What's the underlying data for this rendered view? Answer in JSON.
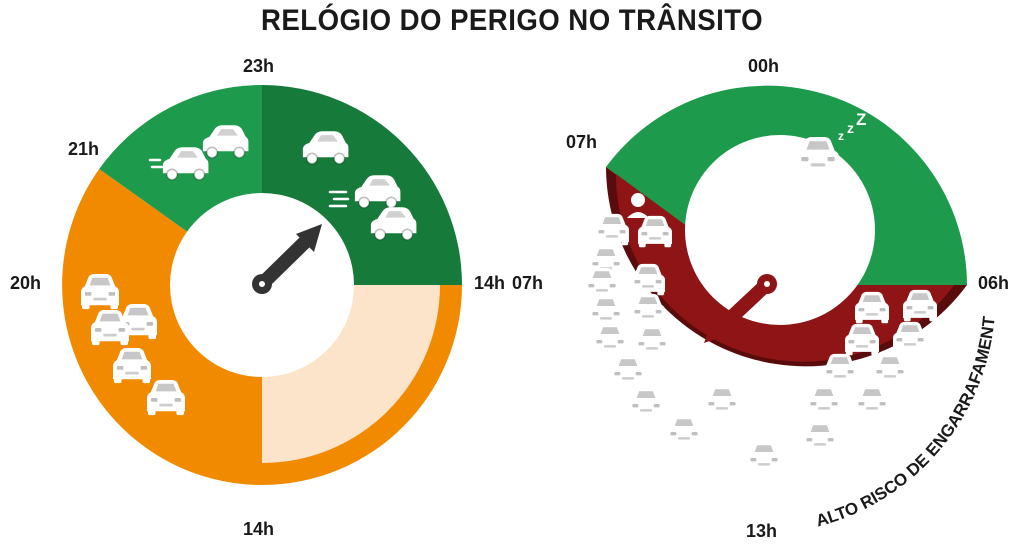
{
  "title": "RELÓGIO DO PERIGO NO TRÂNSITO",
  "colors": {
    "green": "#1d9a4c",
    "dark_green": "#157a3a",
    "orange": "#f28a00",
    "cream": "#fbe4c9",
    "red": "#8e1415",
    "dark_red": "#5a0c0d",
    "hand": "#333333"
  },
  "left_clock": {
    "labels": {
      "top": "23h",
      "top_left": "21h",
      "left": "20h",
      "right": "14h",
      "bottom": "14h"
    }
  },
  "right_clock": {
    "labels": {
      "top": "00h",
      "top_left": "07h",
      "left": "07h",
      "right": "06h",
      "bottom": "13h"
    },
    "badge": "ALTO RISCO DE ENGARRAFAMENTO"
  },
  "icons": [
    "car-icon",
    "sleep-icon",
    "angry-driver-icon",
    "stressed-person-icon",
    "clock-hand-icon"
  ]
}
